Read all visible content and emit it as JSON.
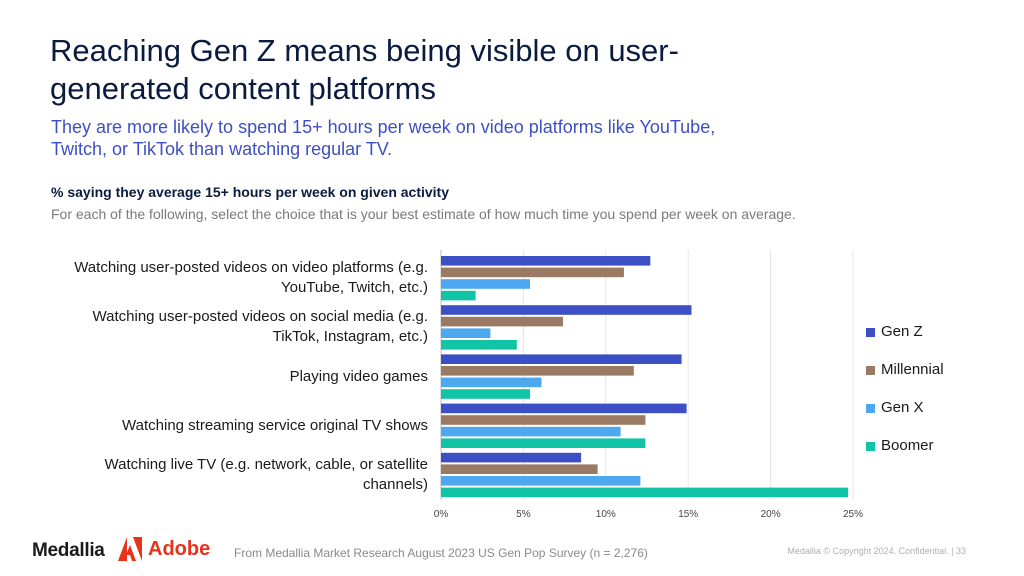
{
  "header": {
    "title": "Reaching Gen Z means being visible on user-generated content platforms",
    "subtitle": "They are more likely to spend 15+ hours per week on video platforms like YouTube, Twitch, or TikTok than watching regular TV."
  },
  "chart_header": {
    "metric": "% saying they average 15+ hours per week on given activity",
    "question": "For each of the following, select the choice that is your best estimate of how much time you spend per week on average."
  },
  "chart_data": {
    "type": "bar",
    "orientation": "horizontal",
    "categories": [
      "Watching user-posted videos on video platforms (e.g. YouTube, Twitch, etc.)",
      "Watching user-posted videos on social media (e.g. TikTok, Instagram, etc.)",
      "Playing video games",
      "Watching streaming service original TV shows",
      "Watching live TV (e.g. network, cable, or satellite channels)"
    ],
    "series": [
      {
        "name": "Gen Z",
        "color": "#3d4fc4",
        "values": [
          12.7,
          15.2,
          14.6,
          14.9,
          8.5
        ]
      },
      {
        "name": "Millennial",
        "color": "#9b7a63",
        "values": [
          11.1,
          7.4,
          11.7,
          12.4,
          9.5
        ]
      },
      {
        "name": "Gen X",
        "color": "#4ea8f0",
        "values": [
          5.4,
          3.0,
          6.1,
          10.9,
          12.1
        ]
      },
      {
        "name": "Boomer",
        "color": "#12c4a6",
        "values": [
          2.1,
          4.6,
          5.4,
          12.4,
          24.7
        ]
      }
    ],
    "xticks": [
      "0%",
      "5%",
      "10%",
      "15%",
      "20%",
      "25%"
    ],
    "xlim": [
      0,
      25
    ],
    "xlabel": "",
    "ylabel": "",
    "legend": "right",
    "grid": true
  },
  "footer": {
    "logo_medallia": "Medallia",
    "logo_adobe": "Adobe",
    "source": "From Medallia Market Research August 2023 US Gen Pop Survey (n = 2,276)",
    "copyright": "Medallia © Copyright 2024. Confidential.  |  33"
  }
}
